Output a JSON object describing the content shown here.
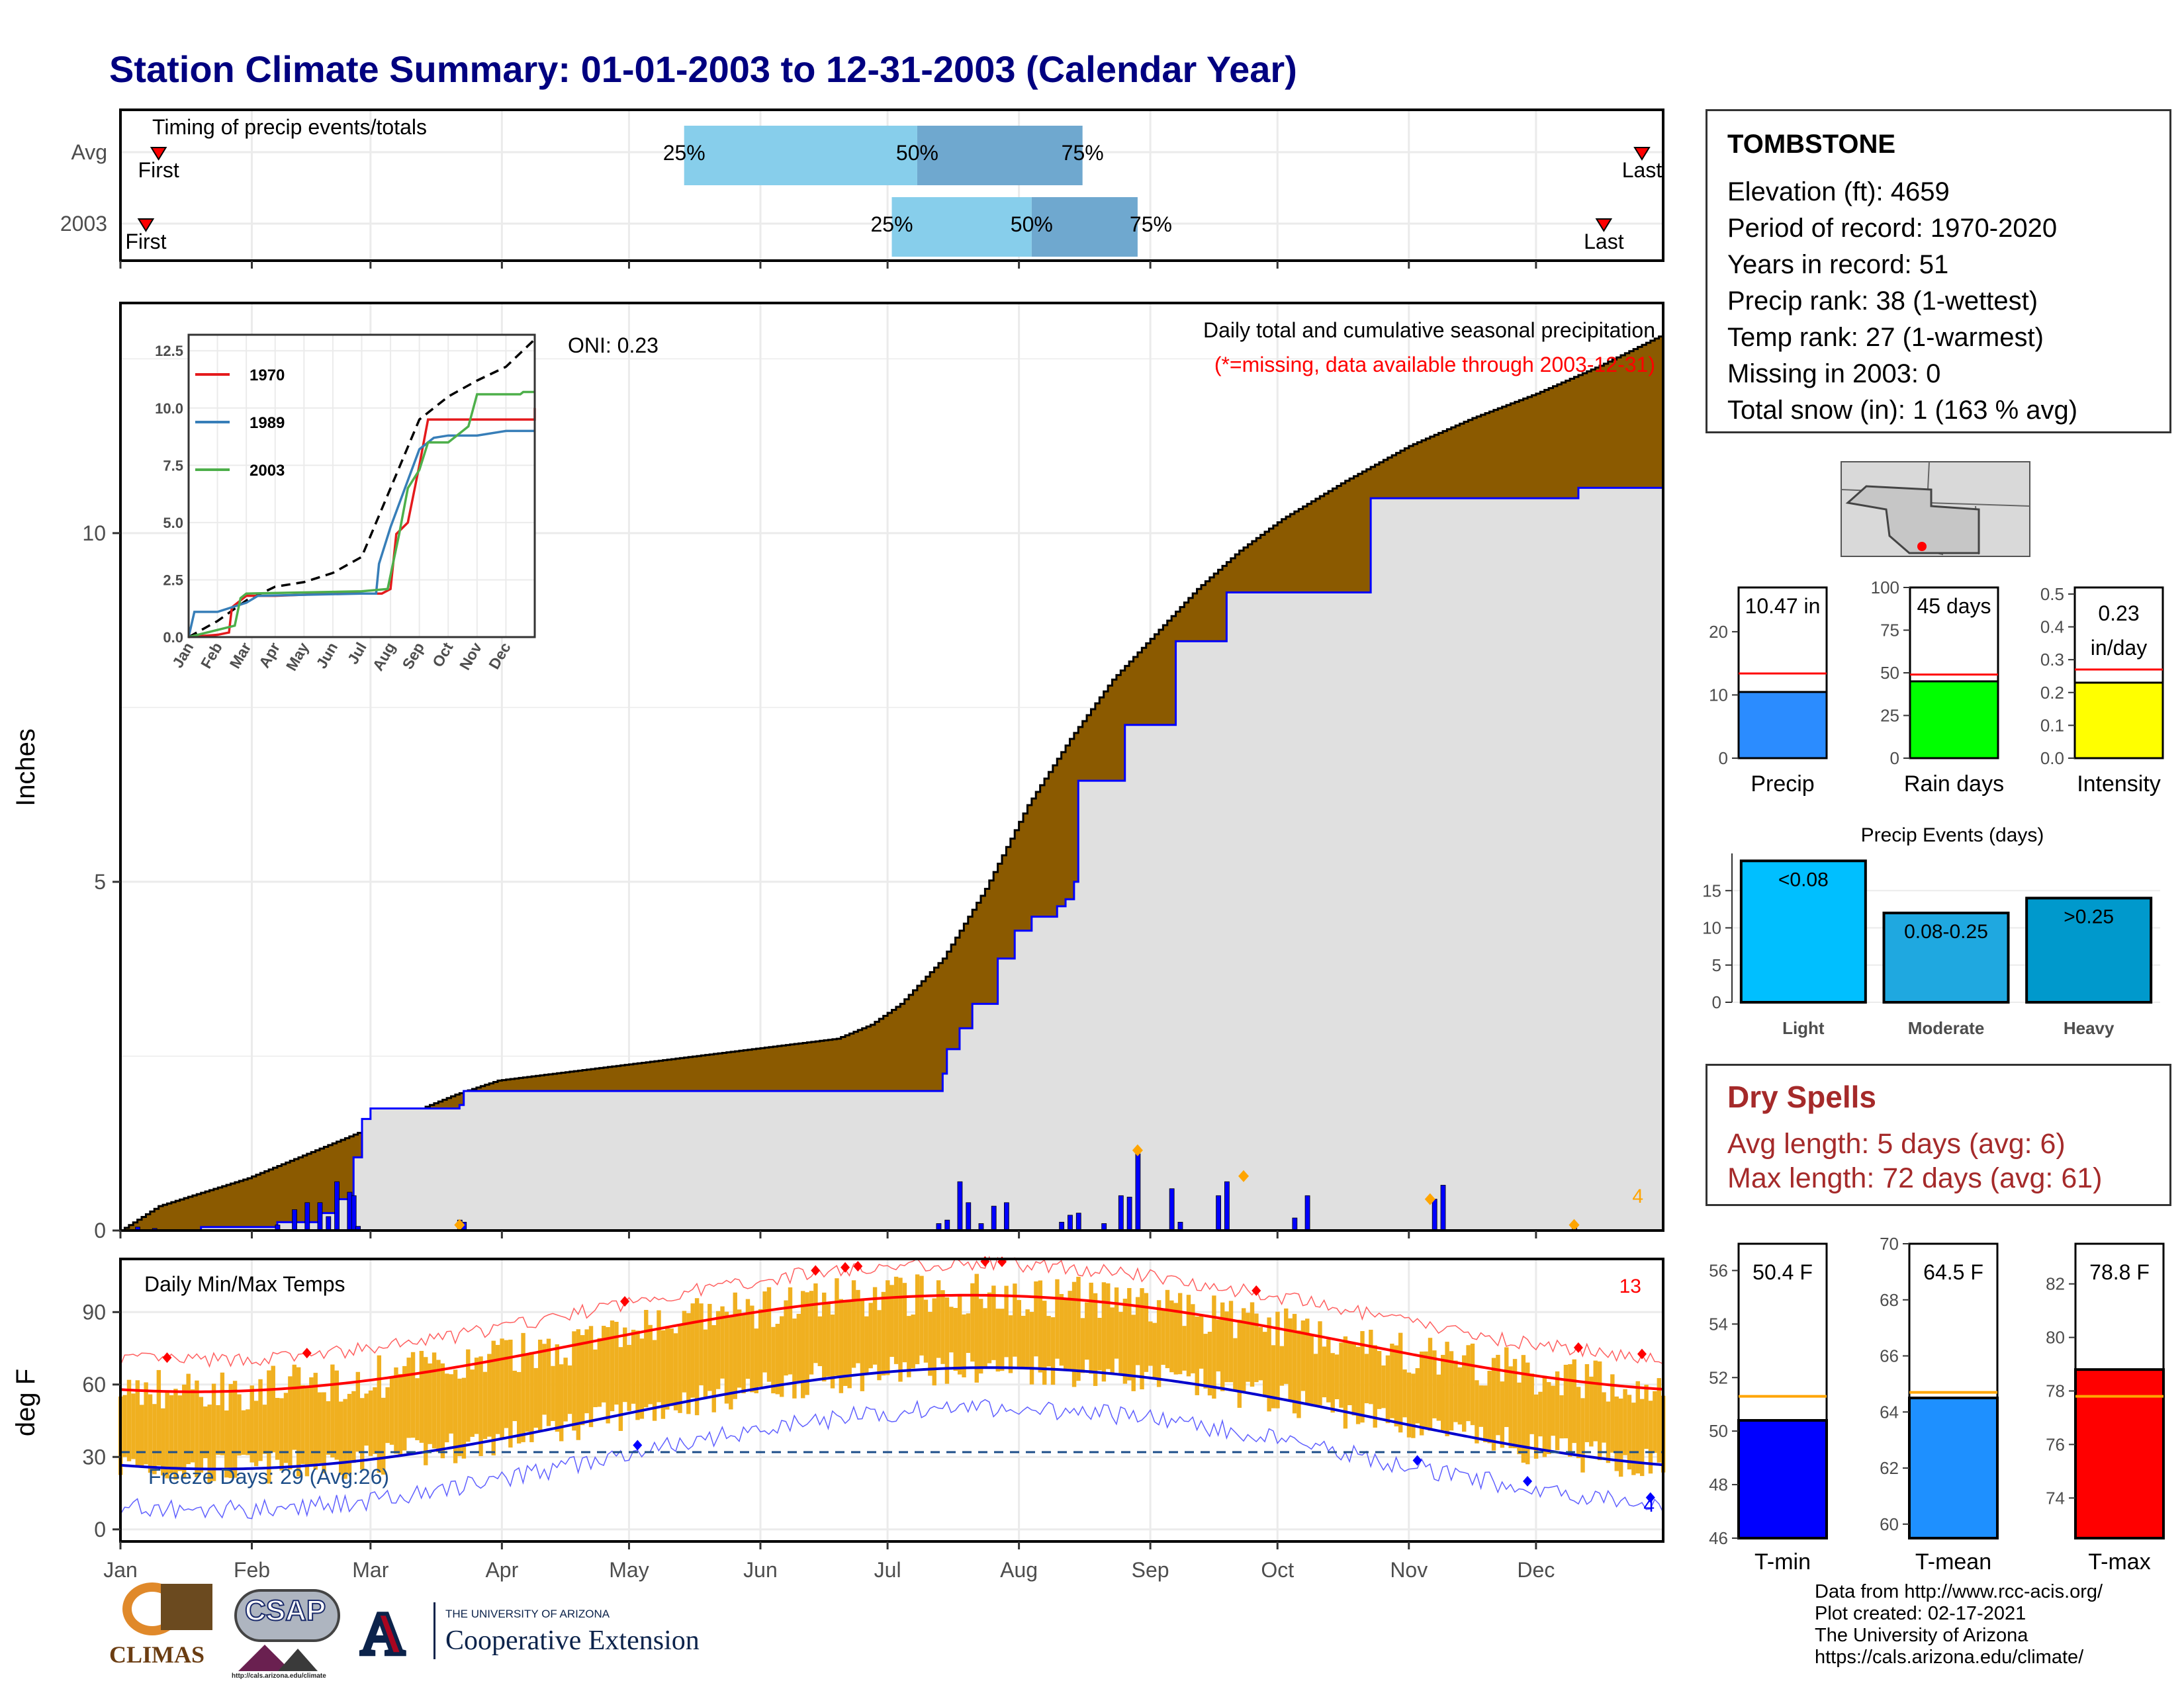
{
  "title": "Station Climate Summary: 01-01-2003 to 12-31-2003 (Calendar Year)",
  "timing": {
    "label": "Timing of precip events/totals",
    "rows": [
      {
        "name": "Avg",
        "first_doy": 10,
        "p25_doy": 134,
        "p50_doy": 189,
        "p75_doy": 228,
        "last_doy": 360,
        "first_label": "First",
        "last_label": "Last"
      },
      {
        "name": "2003",
        "first_doy": 7,
        "p25_doy": 183,
        "p50_doy": 216,
        "p75_doy": 241,
        "last_doy": 351,
        "first_label": "First",
        "last_label": "Last"
      }
    ],
    "p_labels": [
      "25%",
      "50%",
      "75%"
    ]
  },
  "months": [
    "Jan",
    "Feb",
    "Mar",
    "Apr",
    "May",
    "Jun",
    "Jul",
    "Aug",
    "Sep",
    "Oct",
    "Nov",
    "Dec"
  ],
  "precip_panel": {
    "ylabel": "Inches",
    "yticks": [
      0,
      5,
      10
    ],
    "ylim": [
      0,
      13.3
    ],
    "header": "Daily total and cumulative seasonal precipitation",
    "missing_note": "(*=missing, data available through 2003-12-31)",
    "oni": "ONI: 0.23",
    "count_label": "4",
    "cumulative_normal": [
      [
        1,
        0
      ],
      [
        10,
        0.35
      ],
      [
        31,
        0.75
      ],
      [
        59,
        1.45
      ],
      [
        70,
        1.7
      ],
      [
        80,
        1.95
      ],
      [
        90,
        2.15
      ],
      [
        110,
        2.3
      ],
      [
        130,
        2.45
      ],
      [
        150,
        2.6
      ],
      [
        170,
        2.75
      ],
      [
        178,
        2.95
      ],
      [
        185,
        3.25
      ],
      [
        195,
        3.9
      ],
      [
        205,
        4.9
      ],
      [
        215,
        6.1
      ],
      [
        225,
        7.05
      ],
      [
        235,
        7.9
      ],
      [
        245,
        8.55
      ],
      [
        255,
        9.2
      ],
      [
        265,
        9.75
      ],
      [
        275,
        10.2
      ],
      [
        290,
        10.75
      ],
      [
        305,
        11.25
      ],
      [
        320,
        11.65
      ],
      [
        335,
        12.0
      ],
      [
        350,
        12.4
      ],
      [
        365,
        12.85
      ]
    ],
    "cumulative_2003": [
      [
        1,
        0
      ],
      [
        20,
        0.05
      ],
      [
        38,
        0.12
      ],
      [
        48,
        0.25
      ],
      [
        52,
        0.45
      ],
      [
        55,
        0.5
      ],
      [
        56,
        1.05
      ],
      [
        58,
        1.6
      ],
      [
        60,
        1.75
      ],
      [
        81,
        1.8
      ],
      [
        82,
        2.0
      ],
      [
        175,
        2.0
      ],
      [
        195,
        2.25
      ],
      [
        196,
        2.6
      ],
      [
        199,
        2.9
      ],
      [
        202,
        3.25
      ],
      [
        208,
        3.9
      ],
      [
        212,
        4.3
      ],
      [
        216,
        4.5
      ],
      [
        222,
        4.65
      ],
      [
        224,
        4.75
      ],
      [
        226,
        5.0
      ],
      [
        227,
        6.45
      ],
      [
        237,
        6.45
      ],
      [
        238,
        7.25
      ],
      [
        249,
        7.25
      ],
      [
        250,
        8.45
      ],
      [
        261,
        8.45
      ],
      [
        262,
        9.15
      ],
      [
        295,
        9.15
      ],
      [
        296,
        10.5
      ],
      [
        344,
        10.5
      ],
      [
        345,
        10.65
      ],
      [
        365,
        10.65
      ]
    ],
    "daily_bars": [
      [
        5,
        0.05
      ],
      [
        9,
        0.03
      ],
      [
        38,
        0.08
      ],
      [
        42,
        0.3
      ],
      [
        45,
        0.4
      ],
      [
        48,
        0.4
      ],
      [
        50,
        0.2
      ],
      [
        52,
        0.7
      ],
      [
        55,
        0.55
      ],
      [
        56,
        0.5
      ],
      [
        57,
        0.06
      ],
      [
        81,
        0.15
      ],
      [
        82,
        0.12
      ],
      [
        194,
        0.1
      ],
      [
        196,
        0.15
      ],
      [
        199,
        0.7
      ],
      [
        201,
        0.4
      ],
      [
        204,
        0.1
      ],
      [
        207,
        0.35
      ],
      [
        210,
        0.4
      ],
      [
        223,
        0.12
      ],
      [
        225,
        0.22
      ],
      [
        227,
        0.25
      ],
      [
        233,
        0.1
      ],
      [
        237,
        0.5
      ],
      [
        239,
        0.48
      ],
      [
        241,
        1.1
      ],
      [
        249,
        0.6
      ],
      [
        251,
        0.12
      ],
      [
        260,
        0.5
      ],
      [
        262,
        0.7
      ],
      [
        278,
        0.18
      ],
      [
        281,
        0.5
      ],
      [
        311,
        0.45
      ],
      [
        313,
        0.65
      ],
      [
        344,
        0.1
      ]
    ],
    "star_days": [
      [
        81,
        0.08
      ],
      [
        241,
        1.15
      ],
      [
        266,
        0.78
      ],
      [
        310,
        0.45
      ],
      [
        344,
        0.08
      ]
    ]
  },
  "inset": {
    "yticks": [
      "0.0",
      "2.5",
      "5.0",
      "7.5",
      "10.0",
      "12.5"
    ],
    "months": [
      "Jan",
      "Feb",
      "Mar",
      "Apr",
      "May",
      "Jun",
      "Jul",
      "Aug",
      "Sep",
      "Oct",
      "Nov",
      "Dec"
    ],
    "legend": [
      {
        "name": "1970",
        "color": "#e41a1c"
      },
      {
        "name": "1989",
        "color": "#377eb8"
      },
      {
        "name": "2003",
        "color": "#4daf4a"
      }
    ],
    "series": [
      {
        "name": "normal",
        "color": "#000000",
        "points": [
          [
            0,
            0
          ],
          [
            1,
            0.7
          ],
          [
            2,
            1.6
          ],
          [
            3,
            2.2
          ],
          [
            4,
            2.4
          ],
          [
            5,
            2.8
          ],
          [
            6,
            3.5
          ],
          [
            7,
            6.5
          ],
          [
            8,
            9.5
          ],
          [
            9,
            10.5
          ],
          [
            10,
            11.2
          ],
          [
            11,
            11.8
          ],
          [
            12,
            13.0
          ]
        ]
      },
      {
        "name": "1970",
        "color": "#e41a1c",
        "points": [
          [
            0,
            0
          ],
          [
            1,
            0.1
          ],
          [
            1.4,
            0.2
          ],
          [
            1.5,
            1.3
          ],
          [
            2,
            1.8
          ],
          [
            3,
            1.8
          ],
          [
            5,
            1.9
          ],
          [
            6.7,
            1.9
          ],
          [
            7,
            2.1
          ],
          [
            7.2,
            4.5
          ],
          [
            7.6,
            5
          ],
          [
            8,
            7.5
          ],
          [
            8.3,
            9.5
          ],
          [
            10,
            9.5
          ],
          [
            12,
            9.5
          ],
          [
            12,
            10
          ]
        ]
      },
      {
        "name": "1989",
        "color": "#377eb8",
        "points": [
          [
            0,
            0
          ],
          [
            0.2,
            1.1
          ],
          [
            1,
            1.1
          ],
          [
            2,
            1.5
          ],
          [
            2.4,
            1.8
          ],
          [
            6,
            1.9
          ],
          [
            6.5,
            1.9
          ],
          [
            6.6,
            3.2
          ],
          [
            7,
            4.8
          ],
          [
            7.5,
            6.5
          ],
          [
            8,
            8.2
          ],
          [
            8.5,
            8.7
          ],
          [
            9,
            8.8
          ],
          [
            10,
            8.8
          ],
          [
            11,
            9.0
          ],
          [
            12,
            9.0
          ]
        ]
      },
      {
        "name": "2003",
        "color": "#4daf4a",
        "points": [
          [
            0,
            0
          ],
          [
            1.6,
            0.5
          ],
          [
            1.8,
            1.7
          ],
          [
            2,
            1.9
          ],
          [
            6,
            2.0
          ],
          [
            6.9,
            2.1
          ],
          [
            7.1,
            3.3
          ],
          [
            7.3,
            4.5
          ],
          [
            7.6,
            6.5
          ],
          [
            8,
            7.3
          ],
          [
            8.3,
            8.5
          ],
          [
            9,
            8.5
          ],
          [
            9.7,
            9.2
          ],
          [
            10,
            10.6
          ],
          [
            11.5,
            10.6
          ],
          [
            11.6,
            10.7
          ],
          [
            12,
            10.7
          ]
        ]
      }
    ]
  },
  "temp_panel": {
    "ylabel": "deg F",
    "yticks": [
      0,
      30,
      60,
      90
    ],
    "title": "Daily Min/Max Temps",
    "freeze_label": "Freeze Days: 29 (Avg:26)",
    "count_top": "13",
    "count_bottom": "4",
    "colors": {
      "bar": "#f0b020",
      "tmax": "#ff0000",
      "tmin": "#0000cc",
      "freeze": "#1d4e89"
    }
  },
  "station": {
    "name": "TOMBSTONE",
    "lines": [
      "Elevation (ft): 4659",
      "Period of record: 1970-2020",
      "Years in record: 51",
      "Precip rank: 38 (1-wettest)",
      "Temp rank: 27 (1-warmest)",
      "Missing in 2003: 0",
      "Total snow (in): 1 (163 % avg)"
    ]
  },
  "mini_bars": [
    {
      "label": "Precip",
      "value_text": "10.47 in",
      "value": 10.47,
      "avg": 13.4,
      "ymax": 27,
      "ticks": [
        0,
        10,
        20
      ],
      "color": "#2b8cff"
    },
    {
      "label": "Rain days",
      "value_text": "45 days",
      "value": 45,
      "avg": 49,
      "ymax": 100,
      "ticks": [
        0,
        25,
        50,
        75,
        100
      ],
      "color": "#00ff00"
    },
    {
      "label": "Intensity",
      "value_text": "0.23 in/day",
      "value": 0.23,
      "avg": 0.27,
      "ymax": 0.52,
      "ticks": [
        "0.0",
        "0.1",
        "0.2",
        "0.3",
        "0.4",
        "0.5"
      ],
      "color": "#ffff00"
    }
  ],
  "events": {
    "title": "Precip Events (days)",
    "categories": [
      "Light",
      "Moderate",
      "Heavy"
    ],
    "bar_labels": [
      "<0.08",
      "0.08-0.25",
      ">0.25"
    ],
    "values": [
      19,
      12,
      14
    ],
    "colors": [
      "#00bfff",
      "#1fa8e0",
      "#0099cc"
    ],
    "ticks": [
      0,
      5,
      10,
      15
    ]
  },
  "dry": {
    "title": "Dry Spells",
    "lines": [
      "Avg length: 5 days (avg: 6)",
      "Max length: 72 days (avg: 61)"
    ]
  },
  "temp_bars": [
    {
      "label": "T-min",
      "value_text": "50.4 F",
      "value": 50.4,
      "avg": 51.3,
      "ymin": 46,
      "ymax": 57,
      "ticks": [
        46,
        48,
        50,
        52,
        54,
        56
      ],
      "color": "#0000ff"
    },
    {
      "label": "T-mean",
      "value_text": "64.5 F",
      "value": 64.5,
      "avg": 64.7,
      "ymin": 59.5,
      "ymax": 70,
      "ticks": [
        60,
        62,
        64,
        66,
        68,
        70
      ],
      "color": "#1e90ff"
    },
    {
      "label": "T-max",
      "value_text": "78.8 F",
      "value": 78.8,
      "avg": 77.8,
      "ymin": 72.5,
      "ymax": 83.5,
      "ticks": [
        74,
        76,
        78,
        80,
        82
      ],
      "color": "#ff0000"
    }
  ],
  "credits": [
    "Data from http://www.rcc-acis.org/",
    "Plot created: 02-17-2021",
    "The University of Arizona",
    "https://cals.arizona.edu/climate/"
  ],
  "logos": {
    "climas": "CLIMAS",
    "csap": "CSAP",
    "csap_url": "http://cals.arizona.edu/climate",
    "ua_top": "THE UNIVERSITY OF ARIZONA",
    "ua_bottom": "Cooperative Extension",
    "ua_letter": "A"
  }
}
